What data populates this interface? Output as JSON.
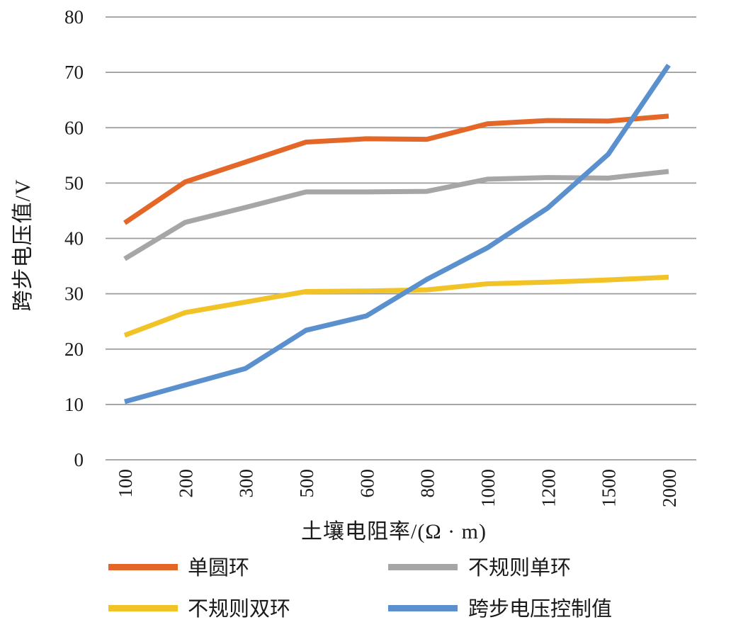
{
  "chart_data": {
    "type": "line",
    "title": "",
    "xlabel": "土壤电阻率/(Ω · m)",
    "ylabel": "跨步电压值/V",
    "categories": [
      100,
      200,
      300,
      500,
      600,
      800,
      1000,
      1200,
      1500,
      2000
    ],
    "x_tick_labels": [
      "100",
      "200",
      "300",
      "500",
      "600",
      "800",
      "1000",
      "1200",
      "1500",
      "2000"
    ],
    "y_tick_labels": [
      "0",
      "10",
      "20",
      "30",
      "40",
      "50",
      "60",
      "70",
      "80"
    ],
    "ylim": [
      0,
      80
    ],
    "ytick_step": 10,
    "grid": true,
    "legend_position": "bottom",
    "series": [
      {
        "name": "单圆环",
        "color": "#E56727",
        "values": [
          42.8,
          50.2,
          53.8,
          57.4,
          58.0,
          57.9,
          60.7,
          61.3,
          61.2,
          62.1
        ]
      },
      {
        "name": "不规则单环",
        "color": "#A6A6A6",
        "values": [
          36.3,
          42.9,
          45.6,
          48.4,
          48.4,
          48.5,
          50.7,
          51.0,
          50.9,
          52.1
        ]
      },
      {
        "name": "不规则双环",
        "color": "#F2C327",
        "values": [
          22.5,
          26.6,
          28.5,
          30.4,
          30.5,
          30.7,
          31.8,
          32.1,
          32.5,
          33.0
        ]
      },
      {
        "name": "跨步电压控制值",
        "color": "#5B90CF",
        "values": [
          10.5,
          13.5,
          16.5,
          23.4,
          26.0,
          32.6,
          38.3,
          45.5,
          55.2,
          71.3
        ]
      }
    ],
    "gridline_color": "#9B9B9B",
    "line_width": 7
  }
}
